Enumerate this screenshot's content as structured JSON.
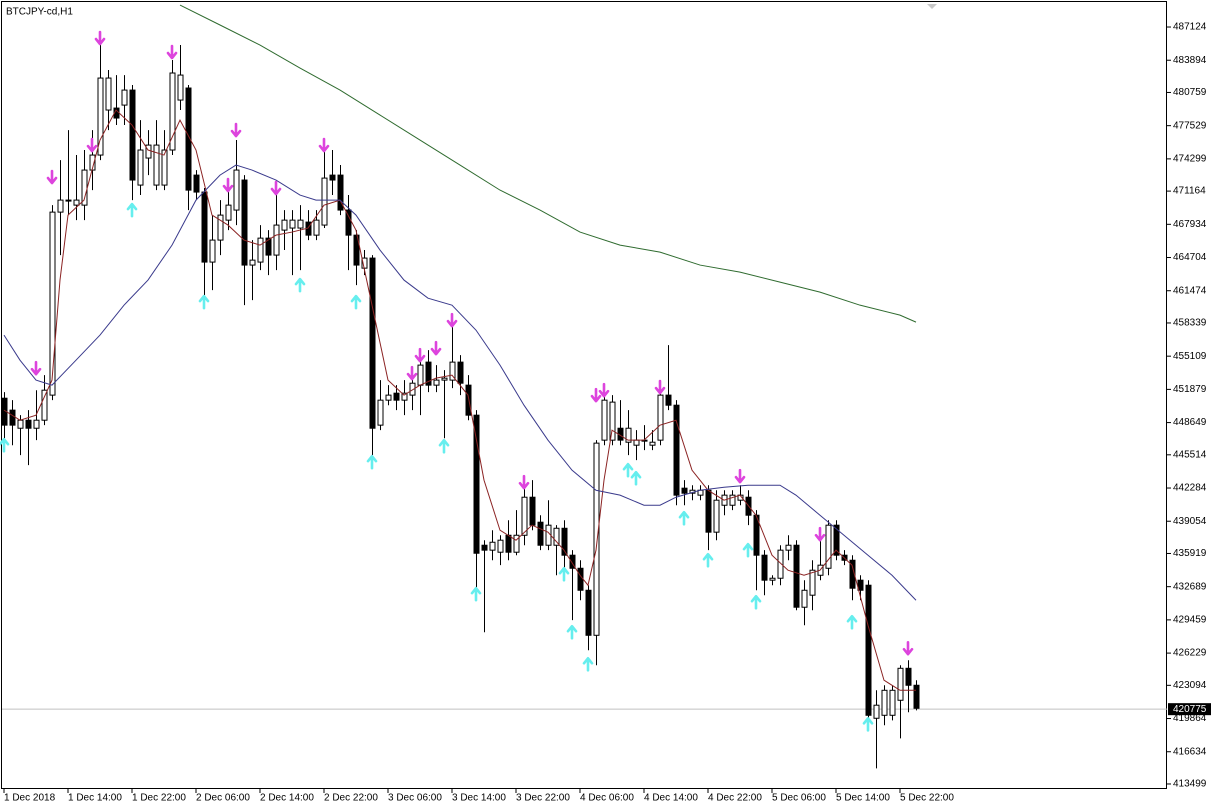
{
  "chart_data": {
    "type": "candlestick",
    "title": "BTCJPY-cd,H1",
    "categories": [
      "1 Dec 2018",
      null,
      null,
      null,
      null,
      null,
      null,
      null,
      "1 Dec 14:00",
      null,
      null,
      null,
      null,
      null,
      null,
      null,
      "1 Dec 22:00",
      null,
      null,
      null,
      null,
      null,
      null,
      null,
      "2 Dec 06:00",
      null,
      null,
      null,
      null,
      null,
      null,
      null,
      "2 Dec 14:00",
      null,
      null,
      null,
      null,
      null,
      null,
      null,
      "2 Dec 22:00",
      null,
      null,
      null,
      null,
      null,
      null,
      null,
      "3 Dec 06:00",
      null,
      null,
      null,
      null,
      null,
      null,
      null,
      "3 Dec 14:00",
      null,
      null,
      null,
      null,
      null,
      null,
      null,
      "3 Dec 22:00",
      null,
      null,
      null,
      null,
      null,
      null,
      null,
      "4 Dec 06:00",
      null,
      null,
      null,
      null,
      null,
      null,
      null,
      "4 Dec 14:00",
      null,
      null,
      null,
      null,
      null,
      null,
      null,
      "4 Dec 22:00",
      null,
      null,
      null,
      null,
      null,
      null,
      null,
      "5 Dec 06:00",
      null,
      null,
      null,
      null,
      null,
      null,
      null,
      "5 Dec 14:00",
      null,
      null,
      null,
      null,
      null,
      null,
      null,
      "5 Dec 22:00",
      null,
      null
    ],
    "open": [
      451020,
      449860,
      448100,
      448880,
      448100,
      448880,
      451320,
      469120,
      470290,
      469800,
      469800,
      473210,
      474670,
      479050,
      479240,
      479530,
      480990,
      471750,
      474380,
      471750,
      471750,
      475160,
      480020,
      481190,
      472720,
      471070,
      464260,
      466400,
      468340,
      469320,
      472240,
      463970,
      464260,
      466590,
      464940,
      467370,
      467570,
      467570,
      468150,
      466880,
      467860,
      472720,
      472720,
      469320,
      466880,
      463670,
      464650,
      448400,
      450830,
      451510,
      450830,
      451320,
      452290,
      454530,
      452290,
      452780,
      452780,
      454530,
      452290,
      449370,
      436720,
      436240,
      436040,
      437690,
      436040,
      437690,
      441390,
      438960,
      436720,
      436720,
      438370,
      435750,
      434480,
      432340,
      427960,
      446940,
      446940,
      448100,
      446740,
      446450,
      446940,
      446450,
      446940,
      451320,
      450340,
      442270,
      441780,
      441590,
      442070,
      437990,
      440610,
      440610,
      441100,
      441390,
      439640,
      435750,
      433320,
      433510,
      436240,
      436720,
      430690,
      431860,
      433800,
      434480,
      438670,
      435750,
      435260,
      433320,
      432830,
      419890,
      420180,
      420180,
      421640,
      424750,
      423100
    ],
    "high": [
      451610,
      450830,
      449370,
      449860,
      451800,
      453260,
      469800,
      474180,
      477100,
      474670,
      475160,
      477100,
      485370,
      482940,
      482450,
      482450,
      481480,
      478070,
      477100,
      478070,
      477100,
      483910,
      485370,
      481480,
      473210,
      471460,
      468830,
      470290,
      471260,
      476130,
      472720,
      466400,
      467860,
      467370,
      471260,
      469320,
      469320,
      469800,
      469320,
      469320,
      476130,
      475160,
      473700,
      470780,
      467370,
      465430,
      464940,
      452780,
      452290,
      452290,
      452780,
      453260,
      455210,
      455700,
      454240,
      453750,
      458130,
      455210,
      453260,
      449860,
      437210,
      438180,
      437690,
      439150,
      440130,
      443050,
      443050,
      439640,
      441100,
      438670,
      439150,
      436240,
      435260,
      432830,
      446940,
      451800,
      451320,
      450830,
      449860,
      447910,
      448400,
      447910,
      452780,
      456180,
      450830,
      443050,
      442560,
      442560,
      442560,
      442070,
      442070,
      442070,
      442560,
      442070,
      440130,
      436240,
      433800,
      436720,
      437690,
      437210,
      433320,
      435260,
      437210,
      439150,
      439150,
      436240,
      435750,
      433800,
      433320,
      422610,
      423100,
      423100,
      425050,
      425530,
      423590
    ],
    "low": [
      445970,
      446450,
      445480,
      444510,
      446940,
      448400,
      450830,
      464940,
      468830,
      468340,
      468340,
      471260,
      474180,
      477100,
      477590,
      477590,
      470290,
      470780,
      472720,
      471260,
      471260,
      474670,
      479050,
      469320,
      470290,
      461050,
      461530,
      464940,
      467370,
      467860,
      460070,
      460560,
      463480,
      462990,
      463480,
      465430,
      462990,
      463480,
      466400,
      466400,
      467570,
      470780,
      468830,
      463480,
      462020,
      462990,
      445480,
      447910,
      450340,
      449860,
      449370,
      449860,
      449370,
      451610,
      451610,
      447130,
      452000,
      451320,
      448880,
      432340,
      428260,
      435260,
      434780,
      435260,
      435750,
      436720,
      438180,
      436240,
      436240,
      433800,
      433320,
      429430,
      431370,
      426500,
      425050,
      446450,
      446450,
      446450,
      445480,
      445000,
      445970,
      445970,
      446450,
      449860,
      440610,
      440610,
      441100,
      441100,
      436240,
      437210,
      439640,
      440130,
      440610,
      438670,
      432340,
      431860,
      432830,
      432830,
      435260,
      430400,
      428940,
      430400,
      433320,
      433800,
      435260,
      434780,
      431370,
      431370,
      419690,
      415020,
      419210,
      419690,
      417940,
      420470,
      420660
    ],
    "close": [
      448400,
      448400,
      448880,
      448100,
      448880,
      451800,
      469120,
      470290,
      470290,
      470290,
      473210,
      474670,
      482160,
      482160,
      478270,
      480990,
      472240,
      475160,
      475640,
      475640,
      475160,
      482650,
      482450,
      471260,
      471070,
      464260,
      466400,
      468830,
      469800,
      473210,
      463970,
      464450,
      466590,
      464940,
      467860,
      468340,
      468340,
      468340,
      466880,
      468340,
      472430,
      472240,
      469320,
      466880,
      463970,
      464650,
      448100,
      450830,
      451320,
      450830,
      451510,
      452480,
      454240,
      452290,
      452780,
      452970,
      454530,
      452480,
      449370,
      435940,
      436240,
      437010,
      437210,
      436040,
      437690,
      441390,
      438670,
      436720,
      438670,
      438370,
      435750,
      434480,
      432340,
      427960,
      446650,
      450830,
      450640,
      446940,
      448100,
      446940,
      446940,
      446740,
      451320,
      450340,
      441590,
      441780,
      442070,
      442070,
      437990,
      441100,
      441590,
      441590,
      441590,
      439640,
      435750,
      433320,
      433510,
      436240,
      436720,
      430690,
      432340,
      434290,
      434780,
      438670,
      435750,
      435260,
      432540,
      432340,
      420180,
      421160,
      422610,
      422610,
      424750,
      423100,
      420860
    ],
    "up_color": "#ffffff",
    "down_color": "#000000",
    "ylim": [
      413010,
      489460
    ],
    "yticks": [
      487124,
      483894,
      480759,
      477529,
      474299,
      471164,
      467934,
      464704,
      461474,
      458339,
      455109,
      451879,
      448649,
      445514,
      442284,
      439054,
      435919,
      432689,
      429459,
      426229,
      423094,
      419864,
      416634,
      413499
    ],
    "current_price": 420775,
    "lines": [
      {
        "color": "#8b2323",
        "x": [
          0,
          2,
          4,
          6,
          7,
          8,
          10,
          12,
          14,
          16,
          18,
          20,
          22,
          24,
          26,
          28,
          30,
          32,
          34,
          36,
          38,
          40,
          42,
          44,
          46,
          48,
          50,
          52,
          54,
          56,
          58,
          60,
          62,
          64,
          66,
          68,
          70,
          72,
          73,
          74,
          75,
          76,
          78,
          80,
          82,
          84,
          86,
          88,
          90,
          92,
          94,
          96,
          98,
          100,
          102,
          104,
          106,
          108,
          110,
          112,
          114
        ],
        "values": [
          449860,
          448880,
          449370,
          452780,
          462510,
          468830,
          470290,
          476130,
          479050,
          477590,
          475160,
          474670,
          478070,
          475160,
          468830,
          467860,
          466400,
          465910,
          466880,
          467180,
          467570,
          469800,
          470290,
          467370,
          460070,
          452780,
          451320,
          452290,
          452970,
          453260,
          451320,
          443050,
          438180,
          437210,
          438670,
          437990,
          436240,
          433800,
          432830,
          436240,
          443050,
          447910,
          446940,
          446940,
          448400,
          448880,
          444020,
          442070,
          441100,
          441590,
          439640,
          435750,
          434290,
          433800,
          434290,
          436240,
          434780,
          428940,
          423590,
          422610,
          422610
        ]
      },
      {
        "color": "#3a3a8c",
        "x": [
          0,
          2,
          4,
          6,
          9,
          12,
          15,
          18,
          21,
          24,
          27,
          29,
          31,
          34,
          37,
          39,
          42,
          44,
          47,
          50,
          53,
          56,
          59,
          62,
          65,
          68,
          71,
          74,
          77,
          80,
          82,
          84,
          87,
          90,
          93,
          97,
          99,
          102,
          105,
          108,
          111,
          114
        ],
        "values": [
          457160,
          454720,
          452780,
          452290,
          454720,
          457160,
          460070,
          462510,
          465910,
          470290,
          472720,
          473700,
          473210,
          472240,
          470780,
          470290,
          470290,
          468830,
          465430,
          462510,
          460750,
          460070,
          457640,
          454240,
          450340,
          446940,
          444020,
          442070,
          441590,
          440610,
          440610,
          441390,
          442070,
          442360,
          442560,
          442560,
          441590,
          439640,
          437690,
          435750,
          433800,
          431370
        ]
      },
      {
        "color": "#2f6b2f",
        "x": [
          22,
          27,
          32,
          37,
          42,
          47,
          52,
          57,
          62,
          67,
          72,
          77,
          82,
          87,
          92,
          97,
          102,
          107,
          112,
          114
        ],
        "values": [
          489260,
          487320,
          485370,
          483130,
          480990,
          478560,
          476130,
          473700,
          471260,
          469320,
          467180,
          465910,
          465230,
          463970,
          463280,
          462310,
          461340,
          460070,
          459100,
          458420
        ]
      }
    ],
    "signals_down": {
      "color": "#dd44dd",
      "x": [
        4,
        6,
        11,
        12,
        21,
        28,
        29,
        34,
        40,
        51,
        52,
        54,
        56,
        65,
        74,
        75,
        82,
        92,
        102,
        113
      ],
      "values": [
        453940,
        472530,
        475640,
        486050,
        484690,
        471750,
        477100,
        471460,
        475640,
        453460,
        455210,
        455890,
        458610,
        442850,
        451320,
        451800,
        452100,
        443440,
        437790,
        426700
      ]
    },
    "signals_up": {
      "color": "#66eeee",
      "x": [
        0,
        16,
        25,
        37,
        44,
        46,
        55,
        59,
        70,
        71,
        73,
        78,
        79,
        85,
        88,
        93,
        94,
        106,
        108
      ],
      "values": [
        446450,
        469320,
        460370,
        462020,
        460370,
        444800,
        446350,
        431960,
        433900,
        428260,
        425140,
        444020,
        443240,
        439350,
        435260,
        436240,
        431180,
        429230,
        419300
      ]
    }
  }
}
